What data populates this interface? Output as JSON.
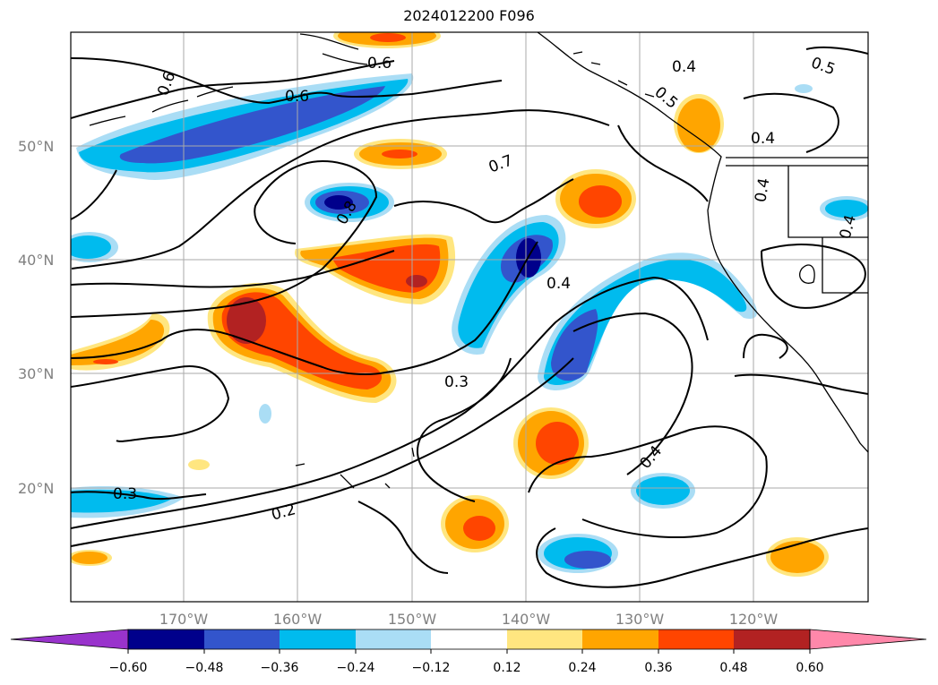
{
  "title": "2024012200 F096",
  "map": {
    "lat_labels": [
      "50°N",
      "40°N",
      "30°N",
      "20°N"
    ],
    "lon_labels": [
      "170°W",
      "160°W",
      "150°W",
      "140°W",
      "130°W",
      "120°W"
    ],
    "contour_labels": [
      "0.6",
      "0.6",
      "0.6",
      "0.4",
      "0.5",
      "0.5",
      "0.4",
      "0.7",
      "0.8",
      "0.4",
      "0.4",
      "0.4",
      "0.3",
      "0.3",
      "0.2",
      "0.4"
    ]
  },
  "colorbar": {
    "ticks": [
      "−0.60",
      "−0.48",
      "−0.36",
      "−0.24",
      "−0.12",
      "0.12",
      "0.24",
      "0.36",
      "0.48",
      "0.60"
    ],
    "colors": [
      "#9933cc",
      "#00008b",
      "#3355cc",
      "#00bbee",
      "#aaddf5",
      "#ffffff",
      "#ffe680",
      "#ffa500",
      "#ff4500",
      "#b22222",
      "#ff88aa"
    ]
  }
}
